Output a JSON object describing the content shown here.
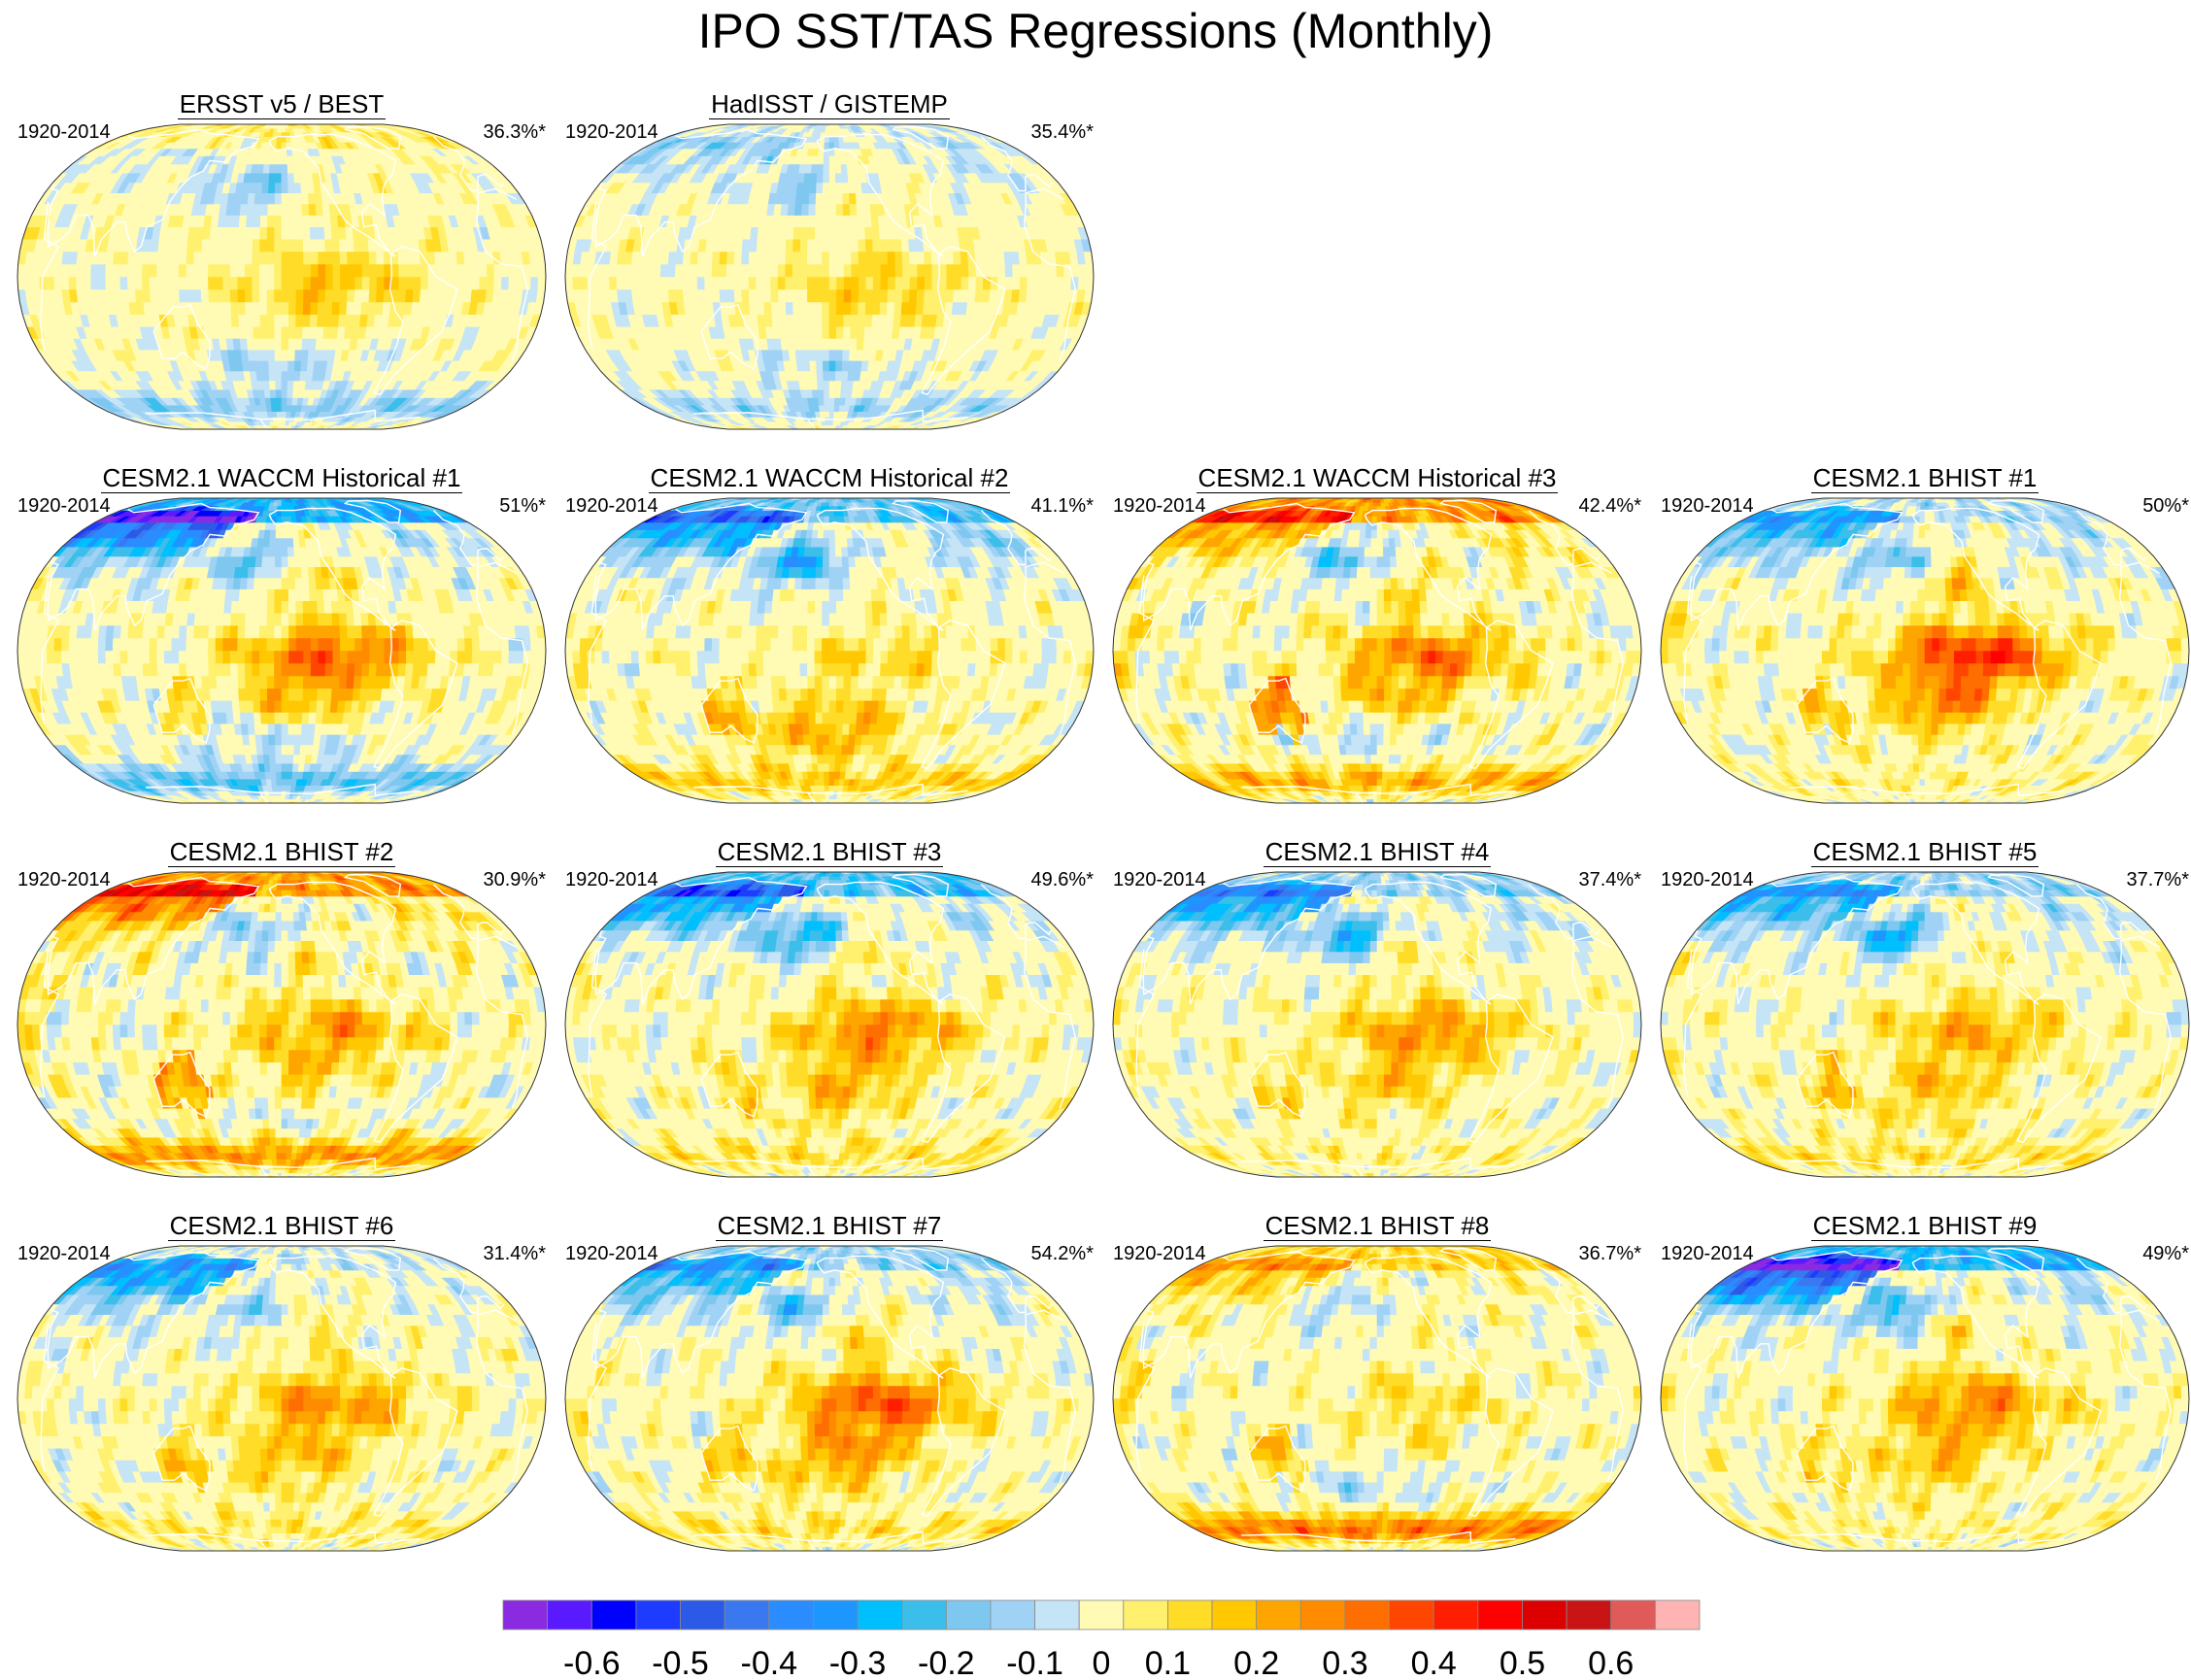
{
  "chart_data": {
    "type": "map-panels",
    "title": "IPO SST/TAS Regressions (Monthly)",
    "projection": "Robinson (Pacific-centered)",
    "panels": [
      {
        "title": "ERSST v5 / BEST",
        "years": "1920-2014",
        "variance": "36.3%*",
        "pattern": {
          "tropical_pacific": 0.18,
          "north_pacific": -0.18,
          "arctic_land": 0.1,
          "southern_ocean": -0.15,
          "south_pacific": -0.12,
          "north_atlantic": 0.02,
          "eurasia": -0.05,
          "south_america": 0.08,
          "australia": 0.05,
          "noise": 0.06
        }
      },
      {
        "title": "HadISST / GISTEMP",
        "years": "1920-2014",
        "variance": "35.4%*",
        "pattern": {
          "tropical_pacific": 0.15,
          "north_pacific": -0.15,
          "arctic_land": -0.08,
          "southern_ocean": -0.12,
          "south_pacific": -0.1,
          "north_atlantic": -0.08,
          "eurasia": -0.1,
          "south_america": 0.05,
          "australia": 0.02,
          "noise": 0.06
        }
      },
      {
        "title": "CESM2.1 WACCM Historical #1",
        "years": "1920-2014",
        "variance": "51%*",
        "pattern": {
          "tropical_pacific": 0.34,
          "north_pacific": -0.2,
          "arctic_land": -0.45,
          "southern_ocean": -0.2,
          "south_pacific": -0.1,
          "north_atlantic": -0.1,
          "eurasia": -0.42,
          "south_america": 0.1,
          "australia": 0.08,
          "noise": 0.07
        }
      },
      {
        "title": "CESM2.1 WACCM Historical #2",
        "years": "1920-2014",
        "variance": "41.1%*",
        "pattern": {
          "tropical_pacific": 0.12,
          "north_pacific": -0.3,
          "arctic_land": -0.3,
          "southern_ocean": 0.15,
          "south_pacific": 0.2,
          "north_atlantic": -0.15,
          "eurasia": -0.3,
          "south_america": 0.15,
          "australia": 0.12,
          "noise": 0.07
        }
      },
      {
        "title": "CESM2.1 WACCM Historical #3",
        "years": "1920-2014",
        "variance": "42.4%*",
        "pattern": {
          "tropical_pacific": 0.3,
          "north_pacific": -0.2,
          "arctic_land": 0.4,
          "southern_ocean": 0.2,
          "south_pacific": -0.08,
          "north_atlantic": 0.1,
          "eurasia": 0.22,
          "south_america": 0.3,
          "australia": 0.25,
          "noise": 0.08
        }
      },
      {
        "title": "CESM2.1 BHIST #1",
        "years": "1920-2014",
        "variance": "50%*",
        "pattern": {
          "tropical_pacific": 0.42,
          "north_pacific": -0.2,
          "arctic_land": -0.15,
          "southern_ocean": 0.05,
          "south_pacific": 0.05,
          "north_atlantic": -0.1,
          "eurasia": -0.25,
          "south_america": 0.2,
          "australia": 0.12,
          "noise": 0.07
        }
      },
      {
        "title": "CESM2.1 BHIST #2",
        "years": "1920-2014",
        "variance": "30.9%*",
        "pattern": {
          "tropical_pacific": 0.24,
          "north_pacific": -0.15,
          "arctic_land": 0.38,
          "southern_ocean": 0.25,
          "south_pacific": -0.05,
          "north_atlantic": 0.1,
          "eurasia": 0.3,
          "south_america": 0.3,
          "australia": 0.25,
          "noise": 0.08
        }
      },
      {
        "title": "CESM2.1 BHIST #3",
        "years": "1920-2014",
        "variance": "49.6%*",
        "pattern": {
          "tropical_pacific": 0.28,
          "north_pacific": -0.3,
          "arctic_land": -0.35,
          "southern_ocean": 0.1,
          "south_pacific": 0.1,
          "north_atlantic": -0.1,
          "eurasia": -0.3,
          "south_america": 0.1,
          "australia": 0.08,
          "noise": 0.07
        }
      },
      {
        "title": "CESM2.1 BHIST #4",
        "years": "1920-2014",
        "variance": "37.4%*",
        "pattern": {
          "tropical_pacific": 0.26,
          "north_pacific": -0.28,
          "arctic_land": -0.2,
          "southern_ocean": 0.05,
          "south_pacific": 0.05,
          "north_atlantic": -0.1,
          "eurasia": -0.3,
          "south_america": 0.12,
          "australia": 0.1,
          "noise": 0.07
        }
      },
      {
        "title": "CESM2.1 BHIST #5",
        "years": "1920-2014",
        "variance": "37.7%*",
        "pattern": {
          "tropical_pacific": 0.22,
          "north_pacific": -0.3,
          "arctic_land": -0.2,
          "southern_ocean": 0.1,
          "south_pacific": 0.1,
          "north_atlantic": -0.1,
          "eurasia": -0.25,
          "south_america": 0.15,
          "australia": 0.12,
          "noise": 0.07
        }
      },
      {
        "title": "CESM2.1 BHIST #6",
        "years": "1920-2014",
        "variance": "31.4%*",
        "pattern": {
          "tropical_pacific": 0.26,
          "north_pacific": -0.15,
          "arctic_land": -0.1,
          "southern_ocean": 0.08,
          "south_pacific": 0.08,
          "north_atlantic": -0.05,
          "eurasia": -0.3,
          "south_america": 0.1,
          "australia": 0.1,
          "noise": 0.07
        }
      },
      {
        "title": "CESM2.1 BHIST #7",
        "years": "1920-2014",
        "variance": "54.2%*",
        "pattern": {
          "tropical_pacific": 0.36,
          "north_pacific": -0.22,
          "arctic_land": -0.2,
          "southern_ocean": 0.1,
          "south_pacific": 0.1,
          "north_atlantic": -0.1,
          "eurasia": -0.25,
          "south_america": 0.15,
          "australia": 0.12,
          "noise": 0.07
        }
      },
      {
        "title": "CESM2.1 BHIST #8",
        "years": "1920-2014",
        "variance": "36.7%*",
        "pattern": {
          "tropical_pacific": 0.12,
          "north_pacific": -0.1,
          "arctic_land": 0.2,
          "southern_ocean": 0.3,
          "south_pacific": -0.1,
          "north_atlantic": 0.05,
          "eurasia": 0.15,
          "south_america": 0.25,
          "australia": 0.15,
          "noise": 0.07
        }
      },
      {
        "title": "CESM2.1 BHIST #9",
        "years": "1920-2014",
        "variance": "49%*",
        "pattern": {
          "tropical_pacific": 0.28,
          "north_pacific": -0.25,
          "arctic_land": -0.42,
          "southern_ocean": 0.05,
          "south_pacific": 0.08,
          "north_atlantic": -0.1,
          "eurasia": -0.45,
          "south_america": 0.1,
          "australia": 0.1,
          "noise": 0.07
        }
      }
    ],
    "colorbar": {
      "colors": [
        "#8a2be2",
        "#5a1aff",
        "#0000ff",
        "#1e3cff",
        "#2c5ae8",
        "#3a78f0",
        "#2a8cff",
        "#1e96ff",
        "#00bfff",
        "#3cbeeb",
        "#7ec8f0",
        "#a0d2f5",
        "#c5e4f6",
        "#fffbb4",
        "#fff06e",
        "#ffdc28",
        "#ffc800",
        "#ffa500",
        "#ff8c00",
        "#ff6e00",
        "#ff4600",
        "#ff1e00",
        "#ff0000",
        "#dc0000",
        "#c81414",
        "#e05a5a",
        "#ffb4b4"
      ],
      "bounds": [
        -0.7,
        -0.65,
        -0.6,
        -0.55,
        -0.5,
        -0.45,
        -0.4,
        -0.35,
        -0.3,
        -0.25,
        -0.2,
        -0.15,
        -0.1,
        -0.05,
        0.05,
        0.1,
        0.15,
        0.2,
        0.25,
        0.3,
        0.35,
        0.4,
        0.45,
        0.5,
        0.55,
        0.6,
        0.65,
        0.7
      ],
      "tick_labels": [
        "-0.6",
        "-0.5",
        "-0.4",
        "-0.3",
        "-0.2",
        "-0.1",
        "0",
        "0.1",
        "0.2",
        "0.3",
        "0.4",
        "0.5",
        "0.6"
      ]
    }
  }
}
